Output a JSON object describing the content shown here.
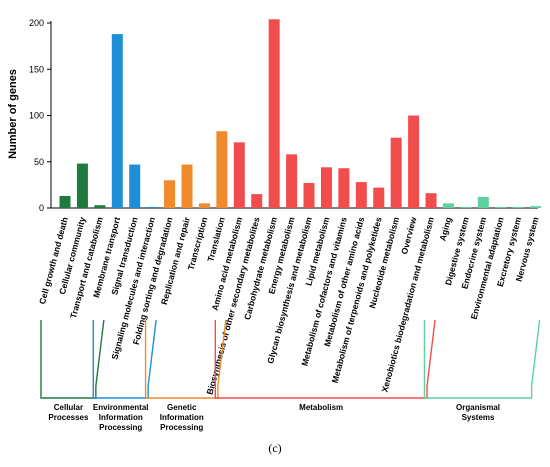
{
  "chart_data": {
    "type": "bar",
    "ylabel": "Number of genes",
    "ylim": [
      0,
      200
    ],
    "yticks": [
      0,
      50,
      100,
      150,
      200
    ],
    "categories": [
      "Cell growth and death",
      "Cellular community",
      "Transport and catabolism",
      "Membrane transport",
      "Signal transduction",
      "Signaling molecules and interaction",
      "Folding sorting and degradation",
      "Replication and repair",
      "Transcription",
      "Translation",
      "Amino acid metabolism",
      "Biosynthesis of other secondary metabolites",
      "Carbohydrate metabolism",
      "Energy metabolism",
      "Glycan biosynthesis and metabolism",
      "Lipid metabolism",
      "Metabolism of cofactors and vitamins",
      "Metabolism of other amino acids",
      "Metabolism of terpenoids and polyketides",
      "Nucleotide metabolism",
      "Overview",
      "Xenobiotics biodegradation and metabolism",
      "Aging",
      "Digestive system",
      "Endocrine system",
      "Environmental adaptation",
      "Excretory system",
      "Nervous system"
    ],
    "values": [
      13,
      48,
      3,
      188,
      47,
      1,
      30,
      47,
      5,
      83,
      71,
      15,
      204,
      58,
      27,
      44,
      43,
      28,
      22,
      76,
      100,
      16,
      5,
      1,
      12,
      1,
      1,
      2
    ],
    "groups": [
      {
        "name": "Cellular Processes",
        "lines": [
          "Cellular",
          "Processes"
        ],
        "start": 0,
        "end": 2,
        "color": "#1f7a3e"
      },
      {
        "name": "Environmental Information Processing",
        "lines": [
          "Environmental",
          "Information",
          "Processing"
        ],
        "start": 3,
        "end": 5,
        "color": "#1e8fd6"
      },
      {
        "name": "Genetic Information Processing",
        "lines": [
          "Genetic",
          "Information",
          "Processing"
        ],
        "start": 6,
        "end": 9,
        "color": "#f08a2c"
      },
      {
        "name": "Metabolism",
        "lines": [
          "Metabolism"
        ],
        "start": 10,
        "end": 21,
        "color": "#f24d4d"
      },
      {
        "name": "Organismal Systems",
        "lines": [
          "Organismal",
          "Systems"
        ],
        "start": 22,
        "end": 27,
        "color": "#5fd0a0"
      }
    ]
  },
  "caption": "(c)"
}
